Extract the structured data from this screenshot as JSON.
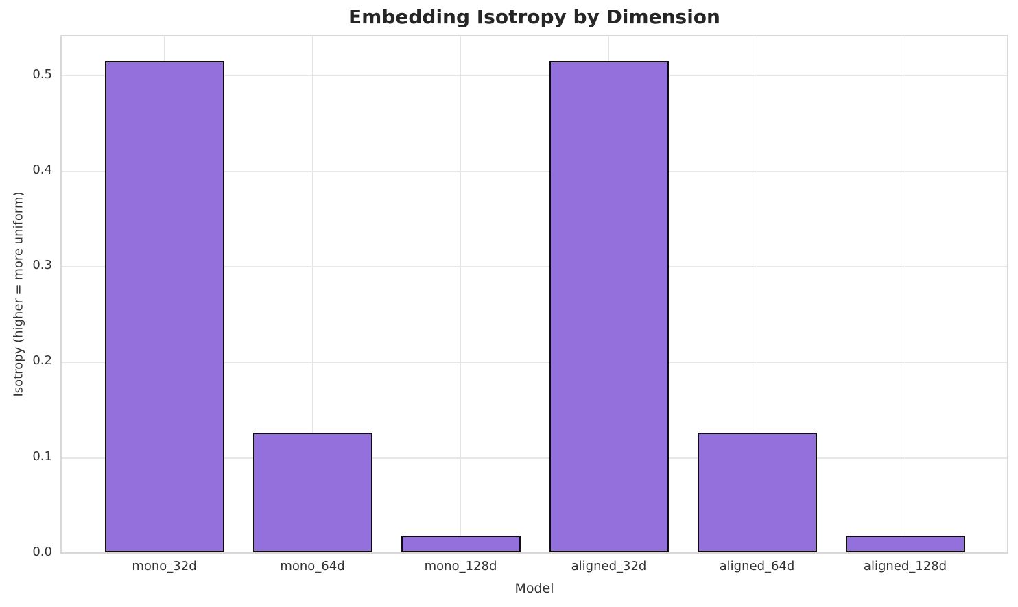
{
  "chart_data": {
    "type": "bar",
    "title": "Embedding Isotropy by Dimension",
    "xlabel": "Model",
    "ylabel": "Isotropy (higher = more uniform)",
    "categories": [
      "mono_32d",
      "mono_64d",
      "mono_128d",
      "aligned_32d",
      "aligned_64d",
      "aligned_128d"
    ],
    "values": [
      0.514,
      0.125,
      0.017,
      0.514,
      0.125,
      0.017
    ],
    "ylim": [
      0,
      0.54
    ],
    "yticks": [
      0.0,
      0.1,
      0.2,
      0.3,
      0.4,
      0.5
    ],
    "ytick_labels": [
      "0.0",
      "0.1",
      "0.2",
      "0.3",
      "0.4",
      "0.5"
    ],
    "grid": true,
    "legend": "none",
    "colors": {
      "bar_fill": "#9370DB",
      "bar_edge": "#0d0d0d",
      "gridline": "#e5e5e5",
      "spine": "#d8d8d8",
      "text": "#333333",
      "title_text": "#262626",
      "background": "#ffffff"
    }
  }
}
